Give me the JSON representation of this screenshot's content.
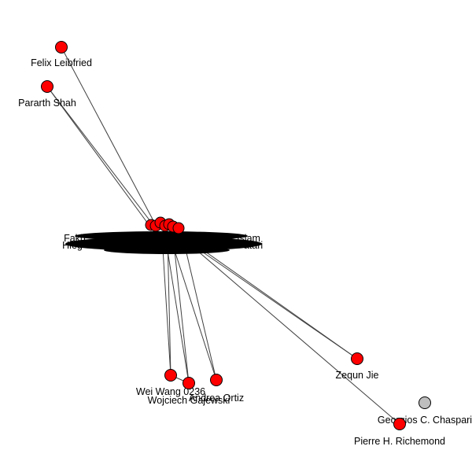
{
  "graph": {
    "nodes": [
      {
        "id": "felix",
        "label": "Felix Leibfried",
        "color": "#ff0000"
      },
      {
        "id": "pararth",
        "label": "Pararth Shah",
        "color": "#ff0000"
      },
      {
        "id": "fakh",
        "label": "Fakh",
        "color": "#ff0000"
      },
      {
        "id": "hieg",
        "label": "Hieg",
        "color": "#ff0000"
      },
      {
        "id": "islam",
        "label": "Islam",
        "color": "#ff0000"
      },
      {
        "id": "atari",
        "label": "atari",
        "color": "#ff0000"
      },
      {
        "id": "zequn",
        "label": "Zequn Jie",
        "color": "#ff0000"
      },
      {
        "id": "weiwang",
        "label": "Wei Wang 0236",
        "color": "#ff0000"
      },
      {
        "id": "wojciech",
        "label": "Wojciech Gajewski",
        "color": "#ff0000"
      },
      {
        "id": "ortiz",
        "label": "Andrea Ortiz",
        "color": "#ff0000"
      },
      {
        "id": "georgios",
        "label": "Georgios C. Chaspari",
        "color": "#bebebe"
      },
      {
        "id": "pierre",
        "label": "Pierre H. Richemond",
        "color": "#ff0000"
      }
    ]
  }
}
